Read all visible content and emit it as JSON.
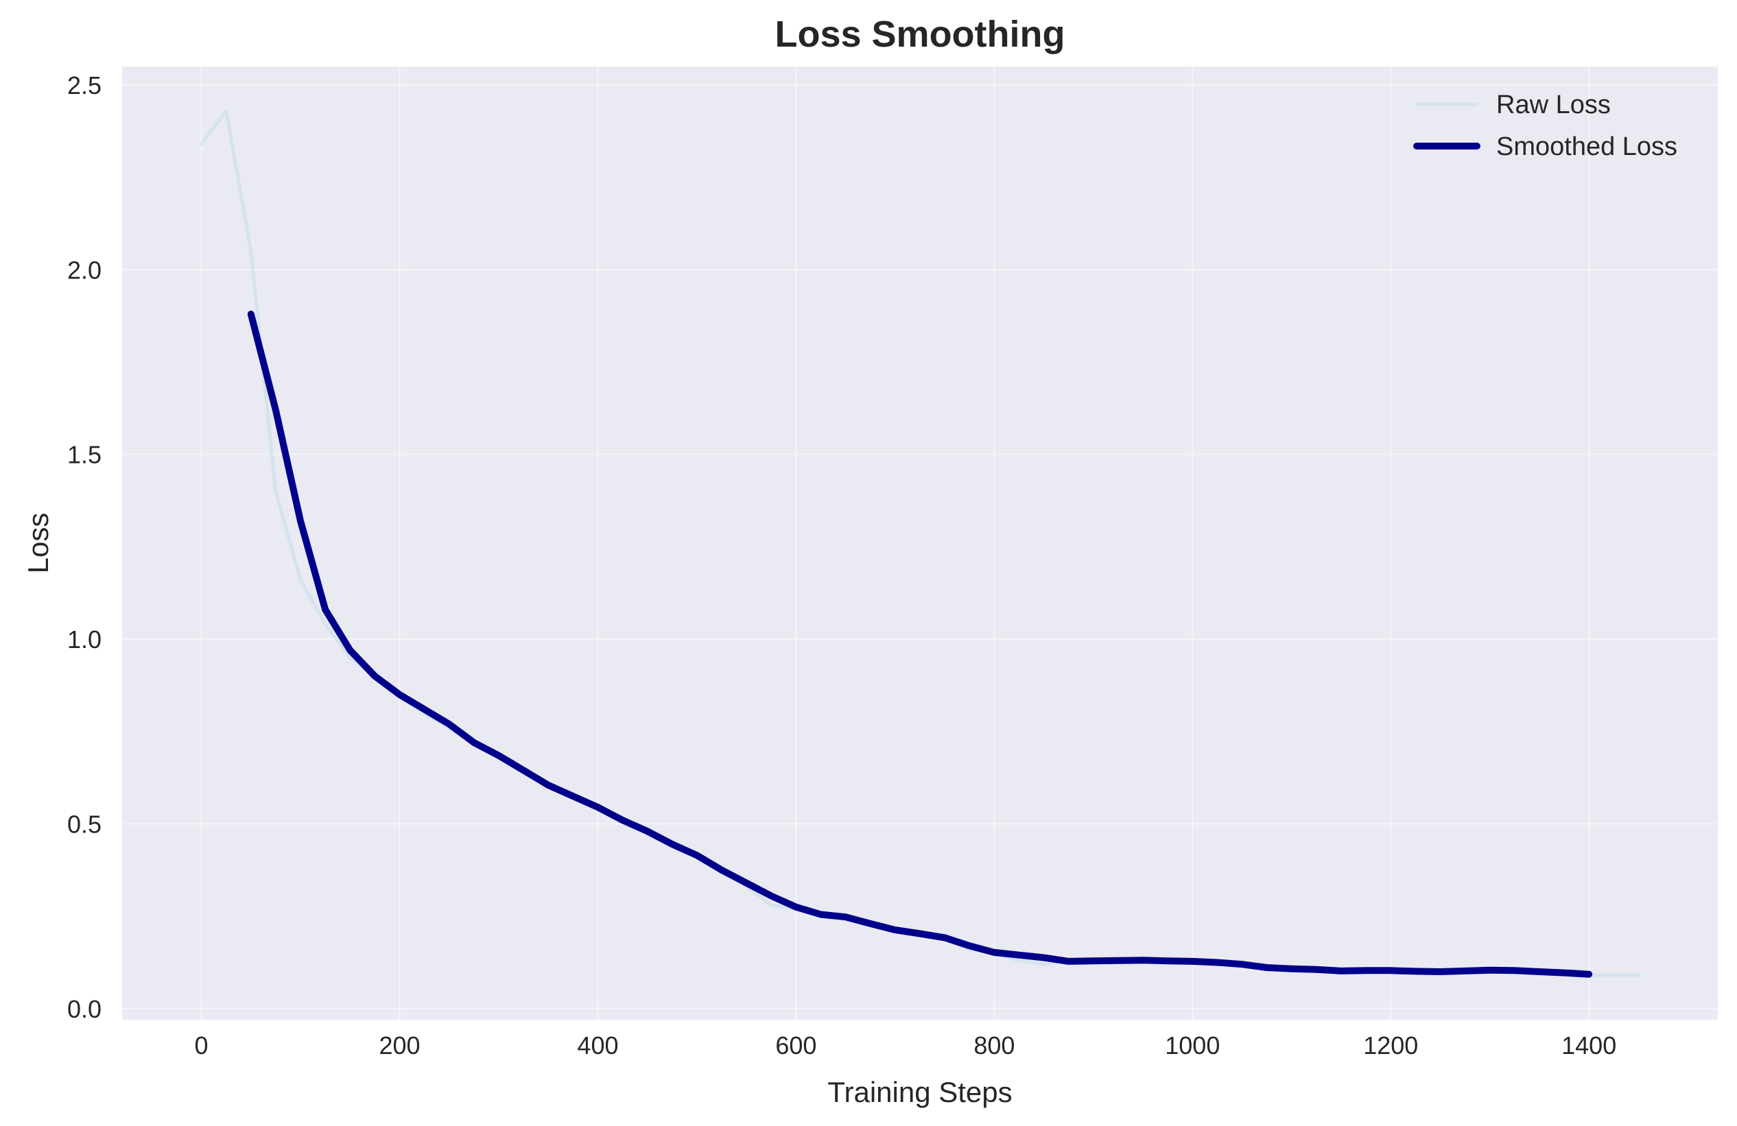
{
  "chart_data": {
    "type": "line",
    "title": "Loss Smoothing",
    "xlabel": "Training Steps",
    "ylabel": "Loss",
    "xlim": [
      -80,
      1530
    ],
    "ylim": [
      -0.03,
      2.55
    ],
    "xticks": [
      0,
      200,
      400,
      600,
      800,
      1000,
      1200,
      1400
    ],
    "yticks": [
      0.0,
      0.5,
      1.0,
      1.5,
      2.0,
      2.5
    ],
    "xtick_labels": [
      "0",
      "200",
      "400",
      "600",
      "800",
      "1000",
      "1200",
      "1400"
    ],
    "ytick_labels": [
      "0.0",
      "0.5",
      "1.0",
      "1.5",
      "2.0",
      "2.5"
    ],
    "grid": true,
    "legend_position": "top-right",
    "series": [
      {
        "name": "Raw Loss",
        "color": "#add8e6",
        "x": [
          0,
          25,
          50,
          75,
          100,
          125,
          150,
          175,
          200,
          225,
          250,
          275,
          300,
          325,
          350,
          375,
          400,
          425,
          450,
          475,
          500,
          525,
          550,
          575,
          600,
          625,
          650,
          675,
          700,
          725,
          750,
          775,
          800,
          825,
          850,
          875,
          900,
          925,
          950,
          975,
          1000,
          1025,
          1050,
          1075,
          1100,
          1125,
          1150,
          1175,
          1200,
          1225,
          1250,
          1275,
          1300,
          1325,
          1350,
          1375,
          1400,
          1425,
          1450
        ],
        "values": [
          2.34,
          2.43,
          2.05,
          1.4,
          1.16,
          1.04,
          0.95,
          0.9,
          0.85,
          0.8,
          0.76,
          0.72,
          0.68,
          0.64,
          0.61,
          0.58,
          0.55,
          0.51,
          0.48,
          0.45,
          0.42,
          0.38,
          0.33,
          0.28,
          0.27,
          0.26,
          0.24,
          0.23,
          0.21,
          0.2,
          0.19,
          0.16,
          0.15,
          0.13,
          0.12,
          0.13,
          0.13,
          0.13,
          0.13,
          0.13,
          0.13,
          0.12,
          0.12,
          0.11,
          0.11,
          0.11,
          0.1,
          0.1,
          0.1,
          0.1,
          0.1,
          0.1,
          0.1,
          0.1,
          0.1,
          0.1,
          0.09,
          0.09,
          0.09
        ]
      },
      {
        "name": "Smoothed Loss",
        "color": "#00008b",
        "x": [
          50,
          75,
          100,
          125,
          150,
          175,
          200,
          225,
          250,
          275,
          300,
          325,
          350,
          375,
          400,
          425,
          450,
          475,
          500,
          525,
          550,
          575,
          600,
          625,
          650,
          675,
          700,
          725,
          750,
          775,
          800,
          825,
          850,
          875,
          900,
          925,
          950,
          975,
          1000,
          1025,
          1050,
          1075,
          1100,
          1125,
          1150,
          1175,
          1200,
          1225,
          1250,
          1275,
          1300,
          1325,
          1350,
          1375,
          1400
        ],
        "values": [
          1.88,
          1.62,
          1.32,
          1.08,
          0.97,
          0.9,
          0.85,
          0.81,
          0.77,
          0.72,
          0.685,
          0.645,
          0.605,
          0.575,
          0.545,
          0.51,
          0.48,
          0.445,
          0.415,
          0.375,
          0.34,
          0.305,
          0.275,
          0.255,
          0.248,
          0.23,
          0.213,
          0.203,
          0.192,
          0.17,
          0.152,
          0.145,
          0.138,
          0.128,
          0.129,
          0.13,
          0.131,
          0.129,
          0.128,
          0.125,
          0.12,
          0.111,
          0.108,
          0.106,
          0.102,
          0.103,
          0.103,
          0.101,
          0.1,
          0.102,
          0.104,
          0.103,
          0.1,
          0.097,
          0.093
        ]
      }
    ],
    "background": "#eaeaf2"
  }
}
